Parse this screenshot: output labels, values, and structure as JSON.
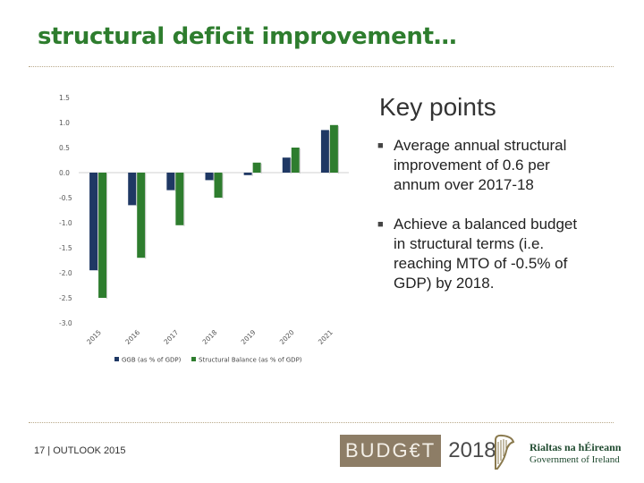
{
  "slide": {
    "title": "structural deficit improvement…",
    "footer": "17 | OUTLOOK 2015"
  },
  "key_points": {
    "heading": "Key points",
    "bullets": [
      "Average annual structural improvement of 0.6 per annum over 2017-18",
      "Achieve a balanced budget in structural terms (i.e. reaching MTO of -0.5% of GDP) by 2018."
    ],
    "bullet_glyph": "■"
  },
  "branding": {
    "budget_word": "BUDG€T",
    "budget_year": "2018",
    "gov_irish": "Rialtas na hÉireann",
    "gov_english": "Government of Ireland"
  },
  "colors": {
    "title": "#2e7d2e",
    "series_ggb": "#1f3864",
    "series_structural": "#2e7d2e",
    "rule": "#b9a98a"
  },
  "chart_data": {
    "type": "bar",
    "categories": [
      "2015",
      "2016",
      "2017",
      "2018",
      "2019",
      "2020",
      "2021"
    ],
    "series": [
      {
        "name": "GGB (as % of GDP)",
        "values": [
          -1.95,
          -0.65,
          -0.35,
          -0.15,
          -0.05,
          0.3,
          0.85
        ]
      },
      {
        "name": "Structural Balance (as % of GDP)",
        "values": [
          -2.5,
          -1.7,
          -1.05,
          -0.5,
          0.2,
          0.5,
          0.95
        ]
      }
    ],
    "ylim": [
      -3.0,
      1.5
    ],
    "yticks": [
      "1.5",
      "1.0",
      "0.5",
      "0.0",
      "-0.5",
      "-1.0",
      "-1.5",
      "-2.0",
      "-2.5",
      "-3.0"
    ],
    "ytick_values": [
      1.5,
      1.0,
      0.5,
      0.0,
      -0.5,
      -1.0,
      -1.5,
      -2.0,
      -2.5,
      -3.0
    ],
    "legend": "bottom",
    "title": "",
    "xlabel": "",
    "ylabel": ""
  }
}
